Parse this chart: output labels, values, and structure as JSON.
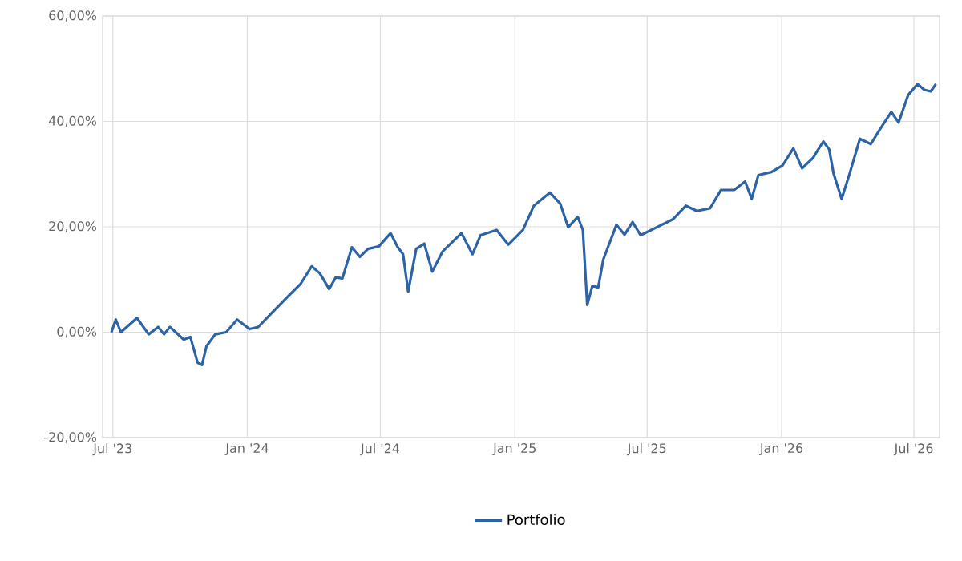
{
  "chart_data": {
    "type": "line",
    "x": [
      "2023-06-29",
      "2023-07-05",
      "2023-07-12",
      "2023-08-03",
      "2023-08-19",
      "2023-09-01",
      "2023-09-09",
      "2023-09-17",
      "2023-10-06",
      "2023-10-15",
      "2023-10-25",
      "2023-10-31",
      "2023-11-06",
      "2023-11-18",
      "2023-12-03",
      "2023-12-18",
      "2024-01-04",
      "2024-01-16",
      "2024-02-03",
      "2024-02-25",
      "2024-03-14",
      "2024-03-29",
      "2024-04-09",
      "2024-04-22",
      "2024-05-01",
      "2024-05-10",
      "2024-05-23",
      "2024-06-03",
      "2024-06-14",
      "2024-06-29",
      "2024-07-15",
      "2024-07-24",
      "2024-08-01",
      "2024-08-08",
      "2024-08-19",
      "2024-08-30",
      "2024-09-10",
      "2024-09-24",
      "2024-10-20",
      "2024-11-04",
      "2024-11-15",
      "2024-12-07",
      "2024-12-23",
      "2025-01-12",
      "2025-01-27",
      "2025-02-18",
      "2025-03-04",
      "2025-03-15",
      "2025-03-28",
      "2025-04-04",
      "2025-04-10",
      "2025-04-17",
      "2025-04-25",
      "2025-05-02",
      "2025-05-20",
      "2025-05-31",
      "2025-06-11",
      "2025-06-22",
      "2025-07-14",
      "2025-08-05",
      "2025-08-23",
      "2025-09-07",
      "2025-09-25",
      "2025-10-10",
      "2025-10-28",
      "2025-11-12",
      "2025-11-21",
      "2025-11-30",
      "2025-12-18",
      "2026-01-02",
      "2026-01-17",
      "2026-01-29",
      "2026-02-13",
      "2026-02-27",
      "2026-03-07",
      "2026-03-13",
      "2026-03-24",
      "2026-04-04",
      "2026-04-18",
      "2026-05-03",
      "2026-05-14",
      "2026-05-31",
      "2026-06-10",
      "2026-06-23",
      "2026-07-06",
      "2026-07-15",
      "2026-07-24",
      "2026-07-31"
    ],
    "series": [
      {
        "name": "Portfolio",
        "color": "#2b63a6",
        "values": [
          0,
          2.4,
          0,
          2.7,
          -0.4,
          1,
          -0.4,
          1,
          -1.4,
          -0.9,
          -5.8,
          -6.2,
          -2.7,
          -0.4,
          0,
          2.4,
          0.6,
          1,
          3.6,
          6.7,
          9.2,
          12.5,
          11.2,
          8.2,
          10.4,
          10.2,
          16.1,
          14.3,
          15.8,
          16.3,
          18.8,
          16.3,
          14.8,
          7.7,
          15.8,
          16.8,
          11.5,
          15.3,
          18.8,
          14.8,
          18.4,
          19.4,
          16.6,
          19.4,
          24,
          26.5,
          24.4,
          19.9,
          21.9,
          19.4,
          5.2,
          8.8,
          8.5,
          13.8,
          20.4,
          18.5,
          20.9,
          18.4,
          19.9,
          21.4,
          24,
          23,
          23.5,
          27,
          27,
          28.6,
          25.3,
          29.8,
          30.4,
          31.6,
          34.9,
          31.1,
          33.1,
          36.2,
          34.7,
          30.1,
          25.3,
          30.1,
          36.7,
          35.7,
          38.2,
          41.8,
          39.8,
          45,
          47.1,
          46,
          45.7,
          47.1
        ]
      }
    ],
    "xlim": [
      "2023-06-17",
      "2026-08-05"
    ],
    "xticks": [
      {
        "value": "2023-07",
        "label": "Jul '23"
      },
      {
        "value": "2024-01",
        "label": "Jan '24"
      },
      {
        "value": "2024-07",
        "label": "Jul '24"
      },
      {
        "value": "2025-01",
        "label": "Jan '25"
      },
      {
        "value": "2025-07",
        "label": "Jul '25"
      },
      {
        "value": "2026-01",
        "label": "Jan '26"
      },
      {
        "value": "2026-07",
        "label": "Jul '26"
      }
    ],
    "ylim": [
      -20,
      60
    ],
    "yticks": [
      {
        "value": -20,
        "label": "-20,00%"
      },
      {
        "value": 0,
        "label": "0,00%"
      },
      {
        "value": 20,
        "label": "20,00%"
      },
      {
        "value": 40,
        "label": "40,00%"
      },
      {
        "value": 60,
        "label": "60,00%"
      }
    ],
    "grid": true,
    "legend": "bottom",
    "marker": "none",
    "line_style": "solid"
  }
}
